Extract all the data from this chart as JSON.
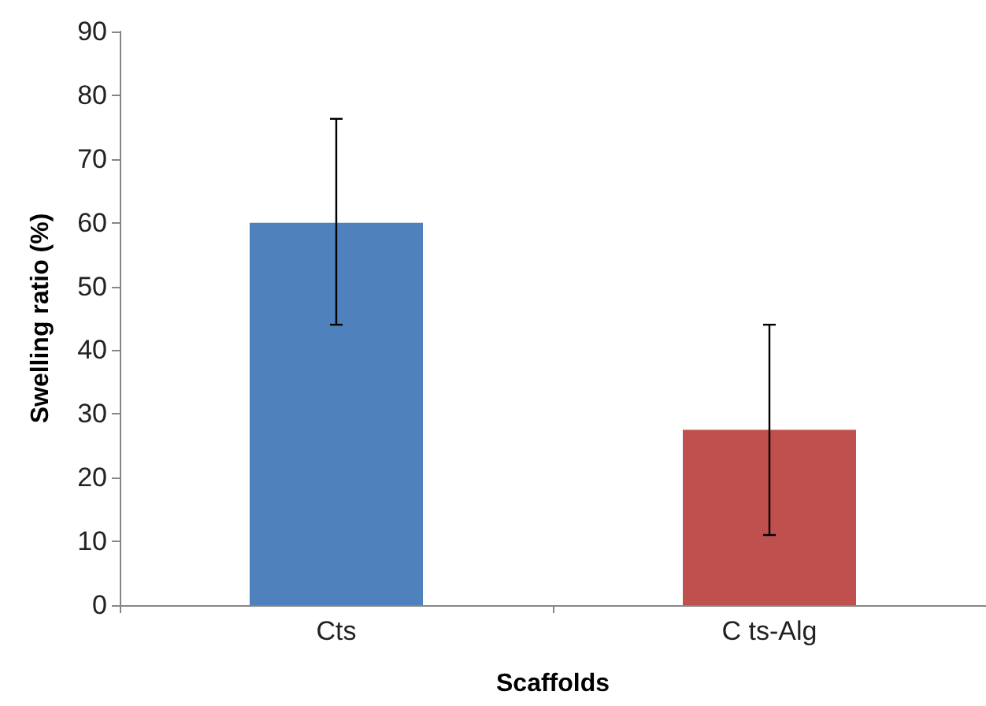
{
  "chart_data": {
    "type": "bar",
    "xlabel": "Scaffolds",
    "ylabel": "Swelling ratio (%)",
    "categories": [
      "Cts",
      "C ts-Alg"
    ],
    "values": [
      60,
      27.5
    ],
    "colors": [
      "#4f81bd",
      "#c0504d"
    ],
    "errors": [
      [
        44,
        76.3
      ],
      [
        11,
        44
      ]
    ],
    "ylim": [
      0,
      90
    ],
    "yticks": [
      0,
      10,
      20,
      30,
      40,
      50,
      60,
      70,
      80,
      90
    ],
    "grid": false
  }
}
